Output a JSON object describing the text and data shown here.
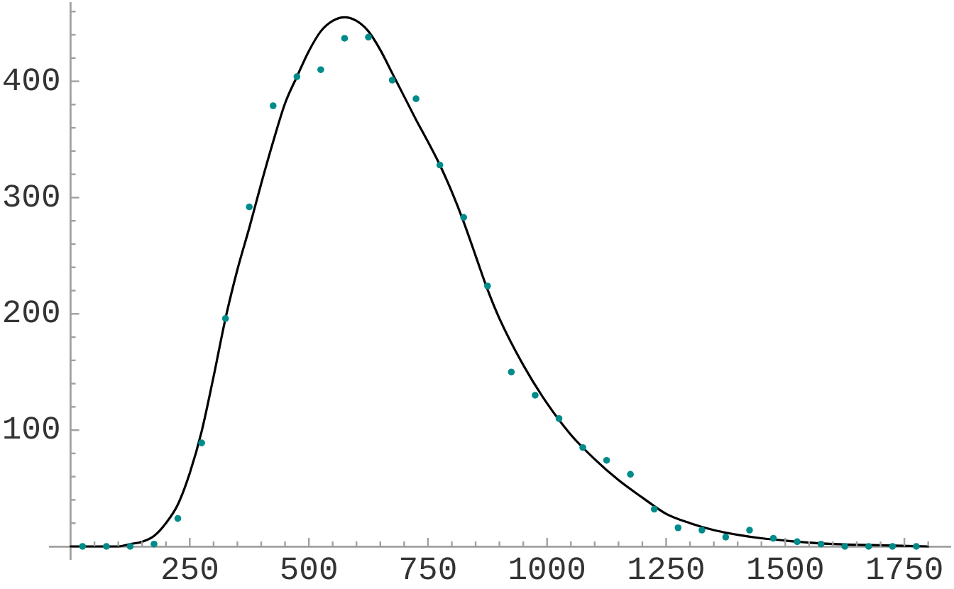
{
  "chart_data": {
    "type": "scatter",
    "xlim": [
      -44,
      1847
    ],
    "ylim": [
      -11,
      467
    ],
    "xticks": [
      {
        "value": 50,
        "label": null
      },
      {
        "value": 100,
        "label": null
      },
      {
        "value": 150,
        "label": null
      },
      {
        "value": 200,
        "label": null
      },
      250,
      {
        "value": 300,
        "label": null
      },
      {
        "value": 350,
        "label": null
      },
      {
        "value": 400,
        "label": null
      },
      {
        "value": 450,
        "label": null
      },
      500,
      {
        "value": 550,
        "label": null
      },
      {
        "value": 600,
        "label": null
      },
      {
        "value": 650,
        "label": null
      },
      {
        "value": 700,
        "label": null
      },
      750,
      {
        "value": 800,
        "label": null
      },
      {
        "value": 850,
        "label": null
      },
      {
        "value": 900,
        "label": null
      },
      {
        "value": 950,
        "label": null
      },
      1000,
      {
        "value": 1050,
        "label": null
      },
      {
        "value": 1100,
        "label": null
      },
      {
        "value": 1150,
        "label": null
      },
      {
        "value": 1200,
        "label": null
      },
      1250,
      {
        "value": 1300,
        "label": null
      },
      {
        "value": 1350,
        "label": null
      },
      {
        "value": 1400,
        "label": null
      },
      {
        "value": 1450,
        "label": null
      },
      1500,
      {
        "value": 1550,
        "label": null
      },
      {
        "value": 1600,
        "label": null
      },
      {
        "value": 1650,
        "label": null
      },
      {
        "value": 1700,
        "label": null
      },
      1750,
      {
        "value": 1800,
        "label": null
      }
    ],
    "yticks": [
      {
        "value": 20,
        "label": null
      },
      {
        "value": 40,
        "label": null
      },
      {
        "value": 60,
        "label": null
      },
      {
        "value": 80,
        "label": null
      },
      100,
      {
        "value": 120,
        "label": null
      },
      {
        "value": 140,
        "label": null
      },
      {
        "value": 160,
        "label": null
      },
      {
        "value": 180,
        "label": null
      },
      200,
      {
        "value": 220,
        "label": null
      },
      {
        "value": 240,
        "label": null
      },
      {
        "value": 260,
        "label": null
      },
      {
        "value": 280,
        "label": null
      },
      300,
      {
        "value": 320,
        "label": null
      },
      {
        "value": 340,
        "label": null
      },
      {
        "value": 360,
        "label": null
      },
      {
        "value": 380,
        "label": null
      },
      400,
      {
        "value": 420,
        "label": null
      },
      {
        "value": 440,
        "label": null
      },
      {
        "value": 460,
        "label": null
      }
    ],
    "series": [
      {
        "color": "#008b8b",
        "marker": "circle",
        "x": [
          25,
          75,
          125,
          175,
          225,
          275,
          325,
          375,
          425,
          475,
          525,
          575,
          625,
          675,
          725,
          775,
          825,
          875,
          925,
          975,
          1025,
          1075,
          1125,
          1175,
          1225,
          1275,
          1325,
          1375,
          1425,
          1475,
          1525,
          1575,
          1625,
          1675,
          1725,
          1775
        ],
        "values": [
          0,
          0,
          0,
          2,
          24,
          89,
          196,
          292,
          379,
          404,
          410,
          437,
          438,
          401,
          385,
          328,
          283,
          224,
          150,
          130,
          110,
          85,
          74,
          62,
          32,
          16,
          14,
          8,
          14,
          7,
          4,
          2,
          0,
          0,
          0,
          0
        ]
      },
      {
        "type": "line",
        "color": "#000000",
        "marker": "none",
        "x": [
          0,
          50,
          100,
          125,
          150,
          175,
          200,
          225,
          250,
          275,
          300,
          325,
          350,
          375,
          400,
          425,
          450,
          475,
          500,
          525,
          550,
          575,
          600,
          625,
          650,
          675,
          700,
          725,
          750,
          775,
          800,
          825,
          850,
          875,
          900,
          950,
          1000,
          1050,
          1100,
          1150,
          1200,
          1250,
          1300,
          1350,
          1400,
          1450,
          1500,
          1600,
          1700,
          1800
        ],
        "values": [
          0,
          0,
          0,
          2,
          4,
          9,
          20,
          36,
          63,
          99,
          146,
          196,
          238,
          274,
          312,
          348,
          381,
          404,
          426,
          443,
          452,
          455,
          452,
          443,
          427,
          407,
          387,
          367,
          348,
          328,
          305,
          279,
          250,
          221,
          196,
          156,
          123,
          96,
          75,
          57,
          42,
          28,
          20,
          14,
          10,
          7,
          5,
          2,
          1,
          0
        ]
      }
    ],
    "grid": false,
    "legend": false
  }
}
